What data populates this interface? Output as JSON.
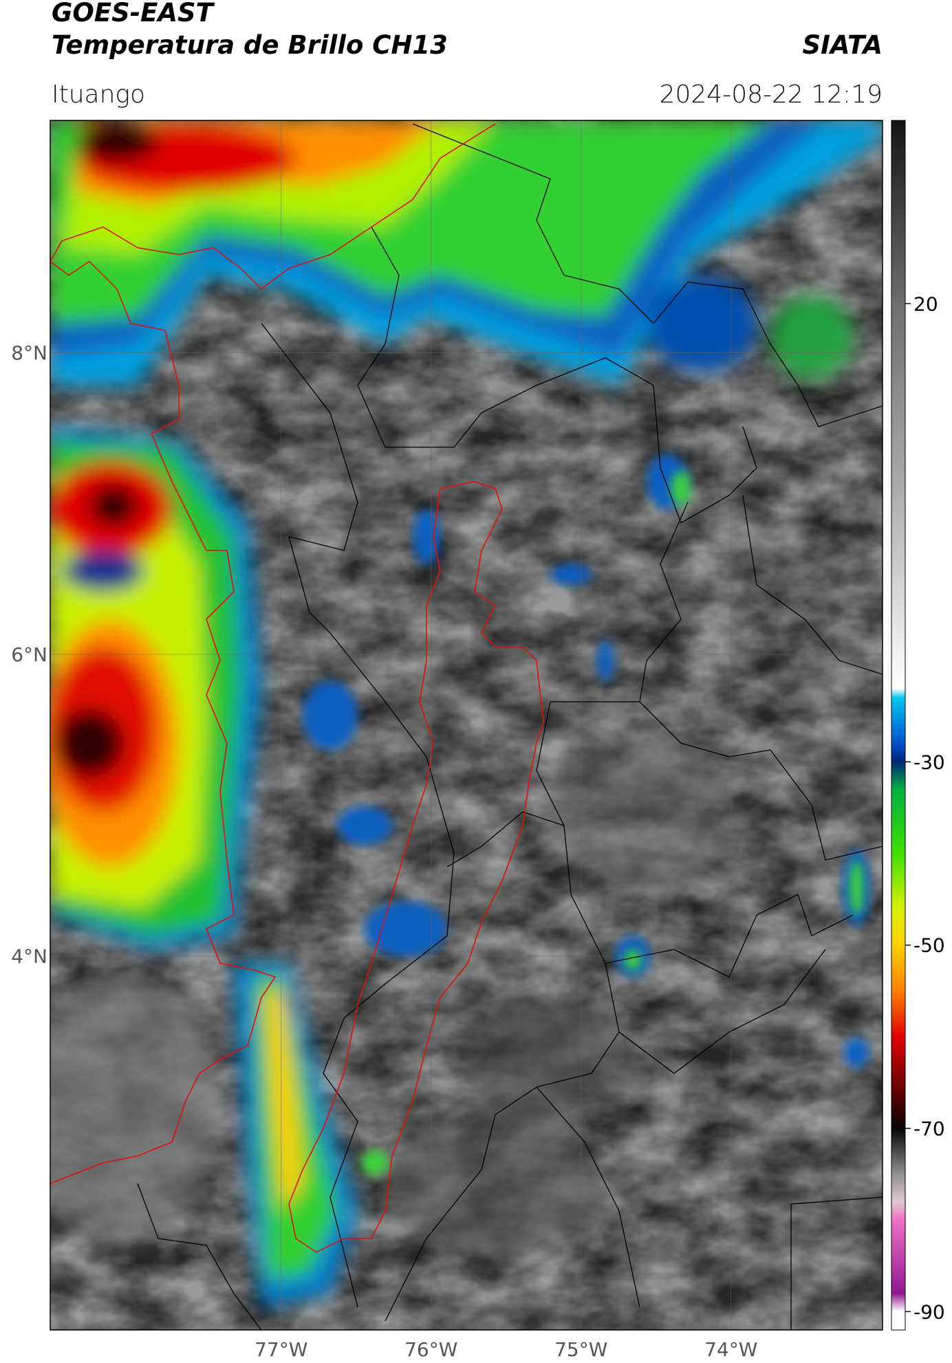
{
  "header": {
    "satellite": "GOES-EAST",
    "product": "Temperatura de Brillo CH13",
    "agency": "SIATA",
    "location": "Ituango",
    "datetime": "2024-08-22 12:19"
  },
  "map": {
    "lonlim": [
      -78.54,
      -72.99
    ],
    "latlim": [
      1.52,
      9.54
    ],
    "grid": true,
    "lonticks": [
      {
        "value": -77,
        "label": "77°W"
      },
      {
        "value": -76,
        "label": "76°W"
      },
      {
        "value": -75,
        "label": "75°W"
      },
      {
        "value": -74,
        "label": "74°W"
      }
    ],
    "latticks": [
      {
        "value": 8,
        "label": "8°N"
      },
      {
        "value": 6,
        "label": "6°N"
      },
      {
        "value": 4,
        "label": "4°N"
      }
    ]
  },
  "colorbar": {
    "lim": [
      -92,
      40
    ],
    "ticks": [
      20,
      -30,
      -50,
      -70,
      -90
    ],
    "colorscale": [
      {
        "value": 40,
        "color": "#151515"
      },
      {
        "value": 20,
        "color": "#6e6e6e"
      },
      {
        "value": 0,
        "color": "#ababab"
      },
      {
        "value": -22,
        "color": "#ffffff"
      },
      {
        "value": -23,
        "color": "#00c8f0"
      },
      {
        "value": -28,
        "color": "#0050c8"
      },
      {
        "value": -30,
        "color": "#002878"
      },
      {
        "value": -33,
        "color": "#00b040"
      },
      {
        "value": -40,
        "color": "#40e000"
      },
      {
        "value": -46,
        "color": "#d8f000"
      },
      {
        "value": -50,
        "color": "#ffd000"
      },
      {
        "value": -55,
        "color": "#ff8000"
      },
      {
        "value": -60,
        "color": "#e00000"
      },
      {
        "value": -66,
        "color": "#600000"
      },
      {
        "value": -70,
        "color": "#050505"
      },
      {
        "value": -75,
        "color": "#909090"
      },
      {
        "value": -78,
        "color": "#e0c8d0"
      },
      {
        "value": -80,
        "color": "#f070c8"
      },
      {
        "value": -88,
        "color": "#901890"
      },
      {
        "value": -90,
        "color": "#ffffff"
      },
      {
        "value": -92,
        "color": "#ffffff"
      }
    ]
  }
}
